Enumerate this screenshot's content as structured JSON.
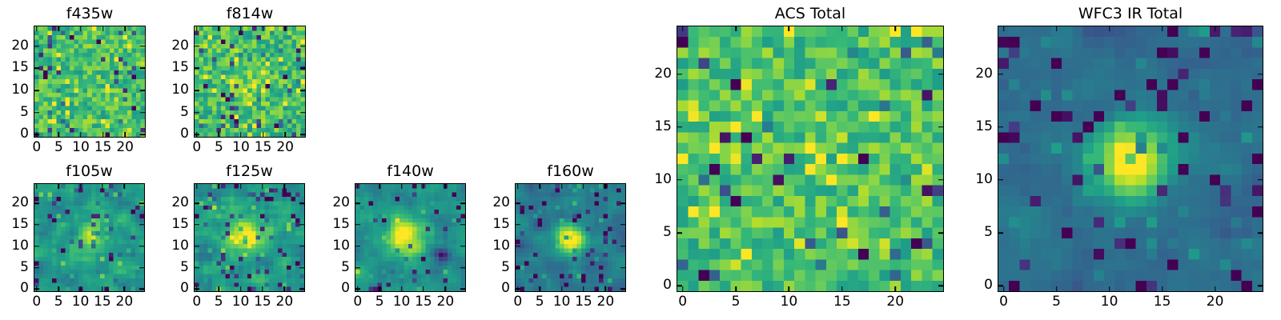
{
  "chart_data": {
    "type": "heatmap",
    "colormap": "viridis",
    "colormap_stops": [
      {
        "t": 0.0,
        "c": "#440154"
      },
      {
        "t": 0.111,
        "c": "#482878"
      },
      {
        "t": 0.222,
        "c": "#3e4989"
      },
      {
        "t": 0.333,
        "c": "#31688e"
      },
      {
        "t": 0.444,
        "c": "#26828e"
      },
      {
        "t": 0.556,
        "c": "#1f9e89"
      },
      {
        "t": 0.667,
        "c": "#35b779"
      },
      {
        "t": 0.778,
        "c": "#6ece58"
      },
      {
        "t": 0.889,
        "c": "#b5de2b"
      },
      {
        "t": 1.0,
        "c": "#fde725"
      }
    ],
    "grid_size": 25,
    "xlim": [
      -0.5,
      24.5
    ],
    "ylim": [
      -0.5,
      24.5
    ],
    "xticks": [
      0,
      5,
      10,
      15,
      20
    ],
    "yticks": [
      0,
      5,
      10,
      15,
      20
    ],
    "frame_color": "#000000",
    "background_color": "#ffffff",
    "panels": [
      {
        "id": "f435w",
        "title": "f435w",
        "size": "small",
        "seed": 3,
        "base": 0.7,
        "noise": 0.17,
        "smooth": 0,
        "dark_frac": 0.07,
        "dark_depth": 0.5,
        "bright_frac": 0.07,
        "bright_amp": 0.25,
        "blobs": [],
        "description": "flat green noise, no detected source"
      },
      {
        "id": "f814w",
        "title": "f814w",
        "size": "small",
        "seed": 8,
        "base": 0.69,
        "noise": 0.18,
        "smooth": 0,
        "dark_frac": 0.08,
        "dark_depth": 0.5,
        "bright_frac": 0.08,
        "bright_amp": 0.27,
        "blobs": [
          {
            "x": 12,
            "y": 12,
            "amp": 0.1,
            "sig": 3.5
          }
        ],
        "description": "green noise with very faint central excess"
      },
      {
        "id": "f105w",
        "title": "f105w",
        "size": "small",
        "seed": 21,
        "base": 0.53,
        "noise": 0.3,
        "smooth": 1,
        "dark_frac": 0.09,
        "dark_depth": 0.42,
        "bright_frac": 0.05,
        "bright_amp": 0.18,
        "blobs": [
          {
            "x": 12.5,
            "y": 11.5,
            "amp": 0.4,
            "sig": 2.6
          }
        ],
        "description": "smoothed teal-green noise with faint yellow source at center"
      },
      {
        "id": "f125w",
        "title": "f125w",
        "size": "small",
        "seed": 34,
        "base": 0.53,
        "noise": 0.3,
        "smooth": 1,
        "dark_frac": 0.09,
        "dark_depth": 0.42,
        "bright_frac": 0.05,
        "bright_amp": 0.18,
        "blobs": [
          {
            "x": 11.5,
            "y": 12,
            "amp": 0.47,
            "sig": 2.9
          }
        ],
        "description": "smoothed noise with brighter extended central source"
      },
      {
        "id": "f140w",
        "title": "f140w",
        "size": "small",
        "seed": 5,
        "base": 0.51,
        "noise": 0.26,
        "smooth": 1,
        "dark_frac": 0.05,
        "dark_depth": 0.42,
        "bright_frac": 0.04,
        "bright_amp": 0.16,
        "blobs": [
          {
            "x": 11,
            "y": 12,
            "amp": 0.52,
            "sig": 3.1
          },
          {
            "x": 19.5,
            "y": 8,
            "amp": -0.5,
            "sig": 1.2
          }
        ],
        "description": "smooth background, bright central source, dark spot right of center"
      },
      {
        "id": "f160w",
        "title": "f160w",
        "size": "small",
        "seed": 42,
        "base": 0.41,
        "noise": 0.2,
        "smooth": 1,
        "dark_frac": 0.08,
        "dark_depth": 0.38,
        "bright_frac": 0.04,
        "bright_amp": 0.15,
        "blobs": [
          {
            "x": 12,
            "y": 11.5,
            "amp": 0.7,
            "sig": 2.3
          }
        ],
        "description": "darker teal background with compact saturated yellow source"
      },
      {
        "id": "acs",
        "title": "ACS Total",
        "size": "large",
        "seed": 77,
        "base": 0.71,
        "noise": 0.16,
        "smooth": 0,
        "dark_frac": 0.06,
        "dark_depth": 0.55,
        "bright_frac": 0.08,
        "bright_amp": 0.25,
        "blobs": [],
        "description": "large panel of flat green-yellow noise, no source"
      },
      {
        "id": "wfc3",
        "title": "WFC3 IR Total",
        "size": "large",
        "seed": 99,
        "base": 0.36,
        "noise": 0.16,
        "smooth": 1,
        "dark_frac": 0.11,
        "dark_depth": 0.35,
        "bright_frac": 0.05,
        "bright_amp": 0.12,
        "blobs": [
          {
            "x": 12,
            "y": 12,
            "amp": 0.68,
            "sig": 2.6
          }
        ],
        "description": "large blue-teal panel with purple patches and strong yellow central source"
      }
    ]
  }
}
